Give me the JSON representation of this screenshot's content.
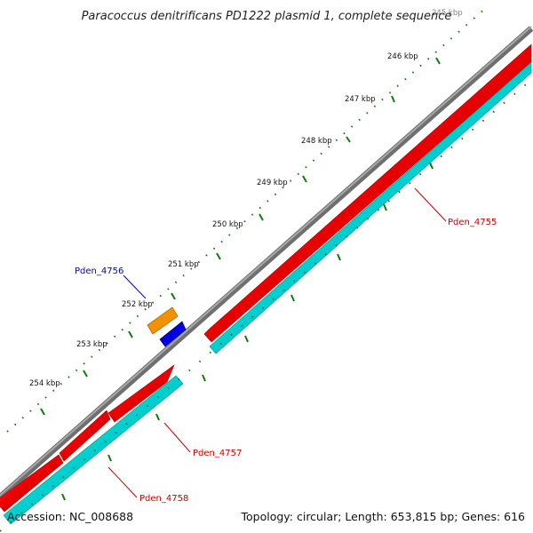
{
  "title": "Paracoccus denitrificans PD1222 plasmid 1, complete sequence",
  "footer": {
    "accession": "Accession: NC_008688",
    "stats": "Topology: circular; Length: 653,815 bp; Genes: 616"
  },
  "colors": {
    "backbone": "#8a8a8a",
    "forward_cds": "#ee0000",
    "reverse_cds": "#00d4d4",
    "tick": "#0f7a0f",
    "label_red": "#cc0000",
    "label_blue": "#0000cc",
    "orange_feature": "#f39200",
    "blue_feature": "#0000e0"
  },
  "kbp_labels": [
    "245 kbp",
    "246 kbp",
    "247 kbp",
    "248 kbp",
    "249 kbp",
    "250 kbp",
    "251 kbp",
    "252 kbp",
    "253 kbp",
    "254 kbp"
  ],
  "gene_labels": [
    {
      "id": "label-pden-4755",
      "text": "Pden_4755",
      "color": "red"
    },
    {
      "id": "label-pden-4756",
      "text": "Pden_4756",
      "color": "blue"
    },
    {
      "id": "label-pden-4757",
      "text": "Pden_4757",
      "color": "red"
    },
    {
      "id": "label-pden-4758",
      "text": "Pden_4758",
      "color": "red"
    }
  ]
}
